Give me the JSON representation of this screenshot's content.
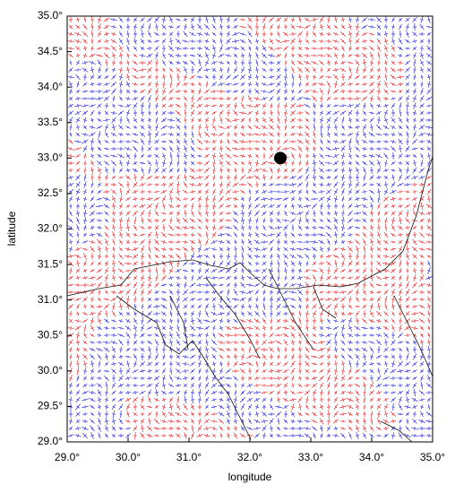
{
  "chart_data": {
    "type": "scatter",
    "x_label": "longitude",
    "y_label": "latitude",
    "x": [
      32.5
    ],
    "y": [
      33.0
    ],
    "color": "#000000",
    "xlim": [
      29.0,
      35.0
    ],
    "ylim": [
      29.0,
      35.0
    ],
    "xticks": [
      {
        "value": 29.0,
        "label": "29.0°"
      },
      {
        "value": 30.0,
        "label": "30.0°"
      },
      {
        "value": 31.0,
        "label": "31.0°"
      },
      {
        "value": 32.0,
        "label": "32.0°"
      },
      {
        "value": 33.0,
        "label": "33.0°"
      },
      {
        "value": 34.0,
        "label": "34.0°"
      },
      {
        "value": 35.0,
        "label": "35.0°"
      }
    ],
    "yticks": [
      {
        "value": 29.0,
        "label": "29.0°"
      },
      {
        "value": 29.5,
        "label": "29.5°"
      },
      {
        "value": 30.0,
        "label": "30.0°"
      },
      {
        "value": 30.5,
        "label": "30.5°"
      },
      {
        "value": 31.0,
        "label": "31.0°"
      },
      {
        "value": 31.5,
        "label": "31.5°"
      },
      {
        "value": 32.0,
        "label": "32.0°"
      },
      {
        "value": 32.5,
        "label": "32.5°"
      },
      {
        "value": 33.0,
        "label": "33.0°"
      },
      {
        "value": 33.5,
        "label": "33.5°"
      },
      {
        "value": 34.0,
        "label": "34.0°"
      },
      {
        "value": 34.5,
        "label": "34.5°"
      },
      {
        "value": 35.0,
        "label": "35.0°"
      }
    ]
  }
}
